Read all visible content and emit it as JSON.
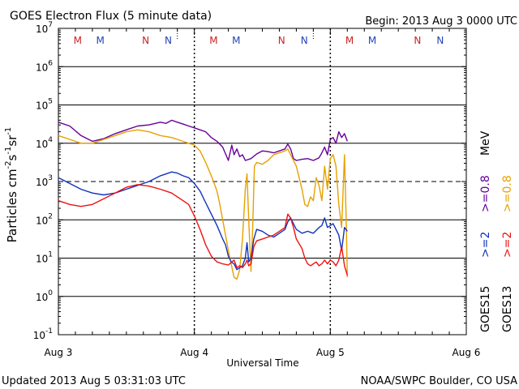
{
  "chart_data": {
    "type": "line",
    "title": "GOES Electron Flux (5 minute data)",
    "begin": "Begin: 2013 Aug 3 0000 UTC",
    "xlabel": "Universal Time",
    "ylabel_parts": [
      "Particles cm",
      "-2",
      "s",
      "-1",
      "sr",
      "-1"
    ],
    "x_ticks": [
      "Aug 3",
      "Aug 4",
      "Aug 5",
      "Aug 6"
    ],
    "xlim": [
      0,
      72
    ],
    "ylim_exp": [
      -1,
      7
    ],
    "y_ticks": [
      {
        "exp": 7,
        "base": "10",
        "sup": "7"
      },
      {
        "exp": 6,
        "base": "10",
        "sup": "6"
      },
      {
        "exp": 5,
        "base": "10",
        "sup": "5"
      },
      {
        "exp": 4,
        "base": "10",
        "sup": "4"
      },
      {
        "exp": 3,
        "base": "10",
        "sup": "3"
      },
      {
        "exp": 2,
        "base": "10",
        "sup": "2"
      },
      {
        "exp": 1,
        "base": "10",
        "sup": "1"
      },
      {
        "exp": 0,
        "base": "10",
        "sup": "0"
      },
      {
        "exp": -1,
        "base": "10",
        "sup": "-1"
      }
    ],
    "alert_threshold_exp": 3,
    "noon_lines_hours": [
      21,
      45
    ],
    "midnight_markers": [
      {
        "label": "M",
        "hour": 3.4,
        "color": "#cc2222"
      },
      {
        "label": "M",
        "hour": 7.4,
        "color": "#2244bb"
      },
      {
        "label": "N",
        "hour": 15.4,
        "color": "#cc2222"
      },
      {
        "label": "N",
        "hour": 19.4,
        "color": "#2244bb"
      },
      {
        "label": "M",
        "hour": 27.4,
        "color": "#cc2222"
      },
      {
        "label": "M",
        "hour": 31.4,
        "color": "#2244bb"
      },
      {
        "label": "N",
        "hour": 39.4,
        "color": "#cc2222"
      },
      {
        "label": "N",
        "hour": 43.4,
        "color": "#2244bb"
      },
      {
        "label": "M",
        "hour": 51.4,
        "color": "#cc2222"
      },
      {
        "label": "M",
        "hour": 55.4,
        "color": "#2244bb"
      },
      {
        "label": "N",
        "hour": 63.4,
        "color": "#cc2222"
      },
      {
        "label": "N",
        "hour": 67.4,
        "color": "#2244bb"
      }
    ],
    "legend": {
      "goes15": "GOES15",
      "goes13": "GOES13",
      "g15_2": ">=2",
      "g15_08": ">=0.8",
      "g13_2": ">=2",
      "g13_08": ">=0.8",
      "mev": "MeV"
    },
    "series": [
      {
        "name": "GOES15 >=0.8 MeV",
        "color": "#660099",
        "points": [
          [
            0,
            4.55
          ],
          [
            2,
            4.45
          ],
          [
            4,
            4.2
          ],
          [
            6,
            4.05
          ],
          [
            8,
            4.12
          ],
          [
            10,
            4.25
          ],
          [
            12,
            4.35
          ],
          [
            14,
            4.45
          ],
          [
            16,
            4.48
          ],
          [
            18,
            4.55
          ],
          [
            19,
            4.52
          ],
          [
            20,
            4.6
          ],
          [
            21,
            4.55
          ],
          [
            22,
            4.5
          ],
          [
            23,
            4.45
          ],
          [
            24,
            4.4
          ],
          [
            25,
            4.35
          ],
          [
            26,
            4.3
          ],
          [
            27,
            4.15
          ],
          [
            28,
            4.05
          ],
          [
            29,
            3.9
          ],
          [
            30,
            3.55
          ],
          [
            30.6,
            3.95
          ],
          [
            31,
            3.7
          ],
          [
            31.5,
            3.85
          ],
          [
            32,
            3.65
          ],
          [
            32.5,
            3.7
          ],
          [
            33,
            3.55
          ],
          [
            34,
            3.6
          ],
          [
            35,
            3.72
          ],
          [
            36,
            3.8
          ],
          [
            37,
            3.78
          ],
          [
            38,
            3.75
          ],
          [
            39,
            3.8
          ],
          [
            40,
            3.85
          ],
          [
            40.5,
            3.98
          ],
          [
            41,
            3.85
          ],
          [
            41.5,
            3.6
          ],
          [
            42,
            3.55
          ],
          [
            43,
            3.58
          ],
          [
            44,
            3.6
          ],
          [
            45,
            3.55
          ],
          [
            46,
            3.62
          ],
          [
            46.5,
            3.75
          ],
          [
            47,
            3.9
          ],
          [
            47.5,
            3.7
          ],
          [
            48,
            4.1
          ],
          [
            48.5,
            4.15
          ],
          [
            49,
            4.0
          ],
          [
            49.5,
            4.3
          ],
          [
            50,
            4.15
          ],
          [
            50.5,
            4.25
          ],
          [
            51,
            4.05
          ]
        ]
      },
      {
        "name": "GOES13 >=0.8 MeV",
        "color": "#e6a100",
        "points": [
          [
            0,
            4.2
          ],
          [
            2,
            4.1
          ],
          [
            4,
            4.0
          ],
          [
            6,
            4.0
          ],
          [
            8,
            4.1
          ],
          [
            10,
            4.2
          ],
          [
            12,
            4.3
          ],
          [
            14,
            4.35
          ],
          [
            16,
            4.3
          ],
          [
            18,
            4.2
          ],
          [
            20,
            4.15
          ],
          [
            21,
            4.1
          ],
          [
            22,
            4.05
          ],
          [
            23,
            4.0
          ],
          [
            24,
            3.95
          ],
          [
            25,
            3.8
          ],
          [
            26,
            3.5
          ],
          [
            27,
            3.15
          ],
          [
            28,
            2.75
          ],
          [
            28.5,
            2.4
          ],
          [
            29,
            2.0
          ],
          [
            30,
            1.2
          ],
          [
            31,
            0.5
          ],
          [
            31.5,
            0.45
          ],
          [
            32,
            0.7
          ],
          [
            32.5,
            1.5
          ],
          [
            33,
            2.8
          ],
          [
            33.3,
            3.2
          ],
          [
            33.6,
            2.0
          ],
          [
            34,
            0.65
          ],
          [
            34.3,
            1.8
          ],
          [
            34.6,
            3.4
          ],
          [
            35,
            3.5
          ],
          [
            36,
            3.45
          ],
          [
            37,
            3.55
          ],
          [
            38,
            3.7
          ],
          [
            39,
            3.75
          ],
          [
            40,
            3.8
          ],
          [
            40.5,
            3.85
          ],
          [
            41,
            3.7
          ],
          [
            42,
            3.4
          ],
          [
            43,
            2.8
          ],
          [
            43.5,
            2.4
          ],
          [
            44,
            2.35
          ],
          [
            44.5,
            2.6
          ],
          [
            45,
            2.5
          ],
          [
            45.5,
            3.1
          ],
          [
            46,
            2.9
          ],
          [
            46.5,
            2.5
          ],
          [
            47,
            3.4
          ],
          [
            47.5,
            2.8
          ],
          [
            48,
            3.6
          ],
          [
            48.5,
            3.7
          ],
          [
            49,
            3.4
          ],
          [
            49.5,
            2.4
          ],
          [
            50,
            1.8
          ],
          [
            50.5,
            3.7
          ],
          [
            50.8,
            2.0
          ],
          [
            51,
            0.5
          ]
        ]
      },
      {
        "name": "GOES15 >=2 MeV",
        "color": "#1133bb",
        "points": [
          [
            0,
            3.1
          ],
          [
            2,
            2.95
          ],
          [
            4,
            2.8
          ],
          [
            6,
            2.7
          ],
          [
            8,
            2.65
          ],
          [
            10,
            2.7
          ],
          [
            12,
            2.8
          ],
          [
            14,
            2.9
          ],
          [
            16,
            3.0
          ],
          [
            18,
            3.15
          ],
          [
            20,
            3.25
          ],
          [
            21,
            3.22
          ],
          [
            22,
            3.15
          ],
          [
            23,
            3.1
          ],
          [
            24,
            2.95
          ],
          [
            25,
            2.75
          ],
          [
            26,
            2.45
          ],
          [
            27,
            2.15
          ],
          [
            28,
            1.85
          ],
          [
            29,
            1.5
          ],
          [
            29.5,
            1.35
          ],
          [
            30,
            1.05
          ],
          [
            30.5,
            0.9
          ],
          [
            31,
            0.85
          ],
          [
            31.5,
            0.7
          ],
          [
            32,
            0.75
          ],
          [
            32.5,
            0.8
          ],
          [
            33,
            1.0
          ],
          [
            33.3,
            1.4
          ],
          [
            33.6,
            0.9
          ],
          [
            34,
            1.0
          ],
          [
            34.5,
            1.5
          ],
          [
            35,
            1.75
          ],
          [
            36,
            1.7
          ],
          [
            37,
            1.6
          ],
          [
            38,
            1.55
          ],
          [
            39,
            1.65
          ],
          [
            40,
            1.75
          ],
          [
            40.5,
            1.95
          ],
          [
            41,
            2.05
          ],
          [
            41.5,
            1.9
          ],
          [
            42,
            1.75
          ],
          [
            43,
            1.65
          ],
          [
            44,
            1.7
          ],
          [
            45,
            1.65
          ],
          [
            46,
            1.8
          ],
          [
            46.5,
            1.85
          ],
          [
            47,
            2.05
          ],
          [
            47.5,
            1.8
          ],
          [
            48,
            1.85
          ],
          [
            48.5,
            1.9
          ],
          [
            49,
            1.75
          ],
          [
            49.5,
            1.6
          ],
          [
            50,
            1.2
          ],
          [
            50.5,
            1.8
          ],
          [
            51,
            1.7
          ]
        ]
      },
      {
        "name": "GOES13 >=2 MeV",
        "color": "#ee1111",
        "points": [
          [
            0,
            2.5
          ],
          [
            2,
            2.4
          ],
          [
            4,
            2.35
          ],
          [
            6,
            2.4
          ],
          [
            8,
            2.55
          ],
          [
            10,
            2.7
          ],
          [
            12,
            2.85
          ],
          [
            14,
            2.92
          ],
          [
            16,
            2.88
          ],
          [
            18,
            2.8
          ],
          [
            20,
            2.7
          ],
          [
            21,
            2.6
          ],
          [
            22,
            2.5
          ],
          [
            23,
            2.4
          ],
          [
            24,
            2.1
          ],
          [
            25,
            1.75
          ],
          [
            26,
            1.35
          ],
          [
            27,
            1.05
          ],
          [
            28,
            0.9
          ],
          [
            29,
            0.85
          ],
          [
            30,
            0.82
          ],
          [
            31,
            0.95
          ],
          [
            31.5,
            0.75
          ],
          [
            32,
            0.8
          ],
          [
            32.5,
            0.75
          ],
          [
            33,
            0.85
          ],
          [
            33.3,
            0.95
          ],
          [
            33.6,
            0.8
          ],
          [
            34,
            0.85
          ],
          [
            34.5,
            1.3
          ],
          [
            35,
            1.45
          ],
          [
            36,
            1.5
          ],
          [
            37,
            1.55
          ],
          [
            38,
            1.6
          ],
          [
            39,
            1.7
          ],
          [
            40,
            1.8
          ],
          [
            40.5,
            2.15
          ],
          [
            41,
            2.05
          ],
          [
            41.5,
            1.8
          ],
          [
            42,
            1.5
          ],
          [
            43,
            1.25
          ],
          [
            43.5,
            1.0
          ],
          [
            44,
            0.85
          ],
          [
            44.5,
            0.8
          ],
          [
            45,
            0.85
          ],
          [
            45.5,
            0.9
          ],
          [
            46,
            0.8
          ],
          [
            46.5,
            0.85
          ],
          [
            47,
            0.95
          ],
          [
            47.5,
            0.85
          ],
          [
            48,
            0.95
          ],
          [
            48.5,
            0.9
          ],
          [
            49,
            0.8
          ],
          [
            49.5,
            0.95
          ],
          [
            50,
            1.3
          ],
          [
            50.5,
            0.8
          ],
          [
            51,
            0.55
          ]
        ]
      }
    ]
  },
  "footer": {
    "updated": "Updated 2013 Aug  5 03:31:03 UTC",
    "credit": "NOAA/SWPC Boulder, CO USA"
  }
}
